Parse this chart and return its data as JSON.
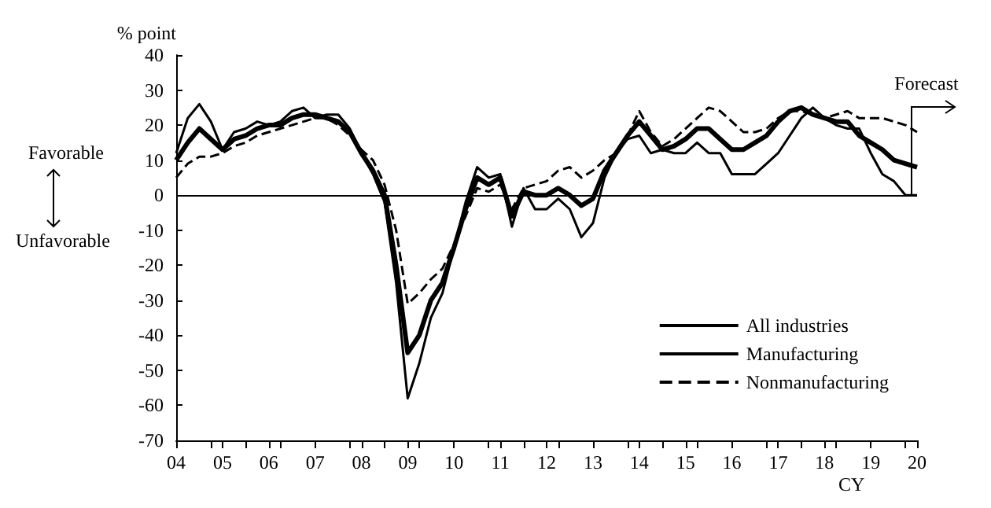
{
  "chart_data": {
    "type": "line",
    "ylabel": "% point",
    "xlabel": "CY",
    "xlim": [
      2004,
      2020
    ],
    "xticks": [
      {
        "value": 2004,
        "label": "04"
      },
      {
        "value": 2005,
        "label": "05"
      },
      {
        "value": 2006,
        "label": "06"
      },
      {
        "value": 2007,
        "label": "07"
      },
      {
        "value": 2008,
        "label": "08"
      },
      {
        "value": 2009,
        "label": "09"
      },
      {
        "value": 2010,
        "label": "10"
      },
      {
        "value": 2011,
        "label": "11"
      },
      {
        "value": 2012,
        "label": "12"
      },
      {
        "value": 2013,
        "label": "13"
      },
      {
        "value": 2014,
        "label": "14"
      },
      {
        "value": 2015,
        "label": "15"
      },
      {
        "value": 2016,
        "label": "16"
      },
      {
        "value": 2017,
        "label": "17"
      },
      {
        "value": 2018,
        "label": "18"
      },
      {
        "value": 2019,
        "label": "19"
      },
      {
        "value": 2020,
        "label": "20"
      }
    ],
    "ylim": [
      -70,
      40
    ],
    "yticks": [
      -70,
      -60,
      -50,
      -40,
      -30,
      -20,
      -10,
      0,
      10,
      20,
      30,
      40
    ],
    "x": [
      2004,
      2004.25,
      2004.5,
      2004.75,
      2005,
      2005.25,
      2005.5,
      2005.75,
      2006,
      2006.25,
      2006.5,
      2006.75,
      2007,
      2007.25,
      2007.5,
      2007.75,
      2008,
      2008.25,
      2008.5,
      2008.75,
      2009,
      2009.25,
      2009.5,
      2009.75,
      2010,
      2010.25,
      2010.5,
      2010.75,
      2011,
      2011.25,
      2011.5,
      2011.75,
      2012,
      2012.25,
      2012.5,
      2012.75,
      2013,
      2013.25,
      2013.5,
      2013.75,
      2014,
      2014.25,
      2014.5,
      2014.75,
      2015,
      2015.25,
      2015.5,
      2015.75,
      2016,
      2016.25,
      2016.5,
      2016.75,
      2017,
      2017.25,
      2017.5,
      2017.75,
      2018,
      2018.25,
      2018.5,
      2018.75,
      2019,
      2019.25,
      2019.5,
      2019.75,
      2020
    ],
    "series": [
      {
        "name": "All industries",
        "color": "#000000",
        "line_style": "solid",
        "values": [
          10,
          15,
          19,
          16,
          13,
          16,
          17,
          19,
          20,
          20,
          22,
          23,
          23,
          22,
          21,
          18,
          12,
          7,
          0,
          -20,
          -45,
          -40,
          -30,
          -25,
          -15,
          -4,
          5,
          3,
          5,
          -6,
          1,
          0,
          0,
          2,
          0,
          -3,
          -1,
          7,
          12,
          17,
          21,
          17,
          13,
          14,
          16,
          19,
          19,
          16,
          13,
          13,
          15,
          17,
          21,
          24,
          25,
          23,
          22,
          21,
          21,
          17,
          15,
          13,
          10,
          9,
          8
        ]
      },
      {
        "name": "Manufacturing",
        "color": "#000000",
        "line_style": "solid",
        "values": [
          12,
          22,
          26,
          21,
          13,
          18,
          19,
          21,
          20,
          21,
          24,
          25,
          22,
          23,
          23,
          19,
          12,
          6,
          -2,
          -25,
          -58,
          -48,
          -35,
          -28,
          -15,
          -2,
          8,
          5,
          6,
          -9,
          2,
          -4,
          -4,
          -1,
          -4,
          -12,
          -8,
          5,
          12,
          16,
          17,
          12,
          13,
          12,
          12,
          15,
          12,
          12,
          6,
          6,
          6,
          9,
          12,
          17,
          22,
          25,
          22,
          20,
          19,
          19,
          12,
          6,
          4,
          0,
          0
        ]
      },
      {
        "name": "Nonmanufacturing",
        "color": "#000000",
        "line_style": "dashed",
        "values": [
          5,
          9,
          11,
          11,
          12,
          14,
          15,
          17,
          18,
          19,
          20,
          21,
          22,
          22,
          20,
          17,
          13,
          10,
          3,
          -10,
          -31,
          -28,
          -24,
          -21,
          -14,
          -6,
          2,
          1,
          3,
          -4,
          2,
          3,
          4,
          7,
          8,
          5,
          7,
          10,
          12,
          17,
          24,
          18,
          14,
          16,
          19,
          22,
          25,
          24,
          21,
          18,
          18,
          19,
          22,
          24,
          24,
          23,
          22,
          23,
          24,
          22,
          22,
          22,
          21,
          20,
          18
        ]
      }
    ],
    "ref_lines": [
      {
        "axis": "y",
        "value": 0
      },
      {
        "axis": "x",
        "value": 2019.875,
        "label": "Forecast"
      }
    ],
    "annotations": [
      "Favorable",
      "Unfavorable"
    ],
    "legend": "bottom right",
    "grid": false,
    "marker": "none"
  }
}
